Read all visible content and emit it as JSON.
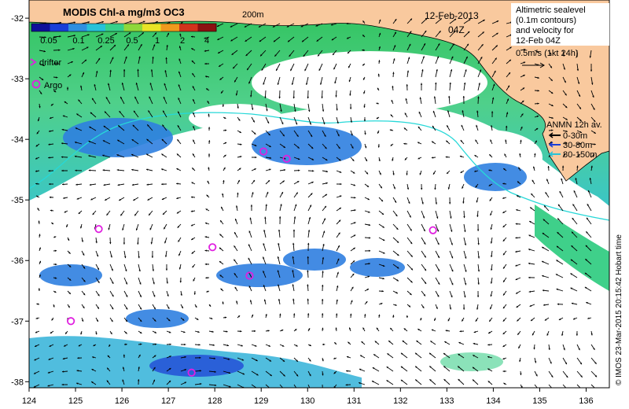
{
  "colorbar": {
    "title": "MODIS Chl-a mg/m3 OC3",
    "ticks": [
      "0.05",
      "0.1",
      "0.25",
      "0.5",
      "1",
      "2",
      "4"
    ],
    "colors": [
      "#10109a",
      "#1a3ed8",
      "#2f8fe0",
      "#27c2d8",
      "#37d08a",
      "#8fd83a",
      "#e9e426",
      "#f09a1d",
      "#d2331c",
      "#8b1111"
    ]
  },
  "isobath_label": "200m",
  "date": "12-Feb-2013",
  "time": "04Z",
  "altimetry_note": [
    "Altimetric sealevel",
    "(0.1m contours)",
    "and velocity for",
    "12-Feb 04Z"
  ],
  "velocity_scale": "0.5m/s (1kt 24h)",
  "legend": {
    "drifter": "drifter",
    "argo": "Argo",
    "anmn_title": "ANMN 12h av.",
    "anmn_items": [
      {
        "label": "0-30m",
        "color": "#000000"
      },
      {
        "label": "30-80m",
        "color": "#1a3ed8"
      },
      {
        "label": "80-150m",
        "color": "#27c2d8"
      }
    ]
  },
  "axes": {
    "lon_ticks": [
      "124",
      "125",
      "126",
      "127",
      "128",
      "129",
      "130",
      "131",
      "132",
      "133",
      "134",
      "135",
      "136"
    ],
    "lat_ticks": [
      "-32",
      "-33",
      "-34",
      "-35",
      "-36",
      "-37",
      "-38"
    ]
  },
  "credit": "© IMOS 23-Mar-2015 20:15:42 Hobart time",
  "argo_floats": [
    {
      "lon": 129.05,
      "lat": -34.2
    },
    {
      "lon": 129.55,
      "lat": -34.32
    },
    {
      "lon": 125.5,
      "lat": -35.48
    },
    {
      "lon": 127.95,
      "lat": -35.78
    },
    {
      "lon": 128.75,
      "lat": -36.25
    },
    {
      "lon": 132.7,
      "lat": -35.5
    },
    {
      "lon": 124.9,
      "lat": -37.0
    },
    {
      "lon": 127.5,
      "lat": -37.85
    }
  ],
  "colors": {
    "land": "#f9c99e",
    "ocean_nodata": "#ffffff",
    "argo": "#e020e0",
    "isobath": "#27d8d8"
  }
}
